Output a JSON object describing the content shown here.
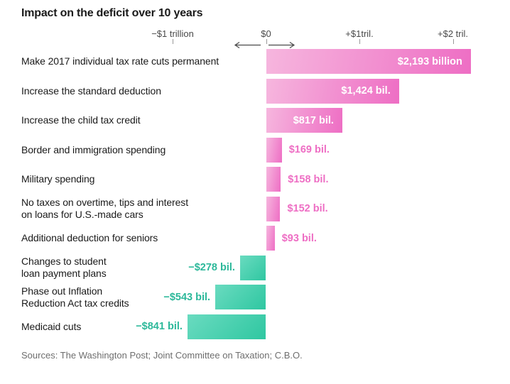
{
  "title": "Impact on the deficit over 10 years",
  "sources": "Sources: The Washington Post; Joint Committee on Taxation; C.B.O.",
  "colors": {
    "pink_light": "#f6b6de",
    "pink_dark": "#ee6ec4",
    "pink_text": "#ee6ec4",
    "teal_light": "#6adbc0",
    "teal_dark": "#2fc7a1",
    "teal_text": "#2cb89a",
    "inside_label": "#ffffff",
    "axis_text": "#4a4a4a",
    "tick": "#999999",
    "label_text": "#1a1a1a",
    "source_text": "#6e6e6e"
  },
  "chart_data": {
    "type": "bar",
    "orientation": "horizontal",
    "unit": "billions of U.S. dollars",
    "title": "Impact on the deficit over 10 years",
    "legend": "none",
    "axis": {
      "position": "top",
      "range_billions": [
        -1100,
        2350
      ],
      "ticks": [
        {
          "label": "−$1 trillion",
          "value": -1000
        },
        {
          "label": "$0",
          "value": 0
        },
        {
          "label": "+$1tril.",
          "value": 1000
        },
        {
          "label": "+$2 tril.",
          "value": 2000
        }
      ]
    },
    "bars": [
      {
        "category": "Make 2017 individual tax rate cuts permanent",
        "category_lines": [
          "Make 2017 individual tax rate cuts permanent"
        ],
        "value": 2193,
        "value_label": "$2,193 billion",
        "label_position": "inside"
      },
      {
        "category": "Increase the standard deduction",
        "category_lines": [
          "Increase the standard deduction"
        ],
        "value": 1424,
        "value_label": "$1,424 bil.",
        "label_position": "inside"
      },
      {
        "category": "Increase the child tax credit",
        "category_lines": [
          "Increase the child tax credit"
        ],
        "value": 817,
        "value_label": "$817 bil.",
        "label_position": "inside"
      },
      {
        "category": "Border and immigration spending",
        "category_lines": [
          "Border and immigration spending"
        ],
        "value": 169,
        "value_label": "$169 bil.",
        "label_position": "right"
      },
      {
        "category": "Military spending",
        "category_lines": [
          "Military spending"
        ],
        "value": 158,
        "value_label": "$158 bil.",
        "label_position": "right"
      },
      {
        "category": "No taxes on overtime, tips and interest on loans for U.S.-made cars",
        "category_lines": [
          "No taxes on overtime, tips and interest",
          "on loans for U.S.-made cars"
        ],
        "value": 152,
        "value_label": "$152 bil.",
        "label_position": "right"
      },
      {
        "category": "Additional deduction for seniors",
        "category_lines": [
          "Additional deduction for seniors"
        ],
        "value": 93,
        "value_label": "$93 bil.",
        "label_position": "right"
      },
      {
        "category": "Changes to student loan payment plans",
        "category_lines": [
          "Changes to student",
          "loan payment plans"
        ],
        "value": -278,
        "value_label": "−$278 bil.",
        "label_position": "left"
      },
      {
        "category": "Phase out Inflation Reduction Act tax credits",
        "category_lines": [
          "Phase out Inflation",
          "Reduction Act tax credits"
        ],
        "value": -543,
        "value_label": "−$543 bil.",
        "label_position": "left"
      },
      {
        "category": "Medicaid cuts",
        "category_lines": [
          "Medicaid cuts"
        ],
        "value": -841,
        "value_label": "−$841 bil.",
        "label_position": "left"
      }
    ]
  }
}
